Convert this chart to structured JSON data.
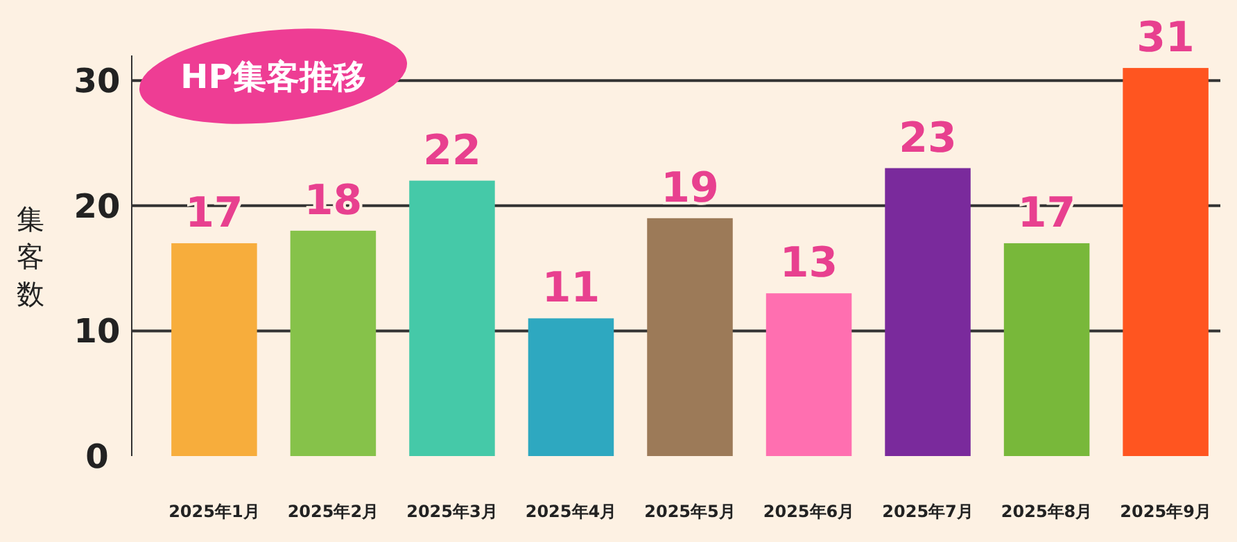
{
  "chart_data": {
    "type": "bar",
    "title": "HP集客推移",
    "ylabel": "集客数",
    "categories": [
      "2025年1月",
      "2025年2月",
      "2025年3月",
      "2025年4月",
      "2025年5月",
      "2025年6月",
      "2025年7月",
      "2025年8月",
      "2025年9月"
    ],
    "values": [
      17,
      18,
      22,
      11,
      19,
      13,
      23,
      17,
      31
    ],
    "colors": [
      "#f7ad3c",
      "#86c24a",
      "#45c9a8",
      "#2ea8c0",
      "#9c7a58",
      "#ff6fb0",
      "#7a2a9c",
      "#78b83a",
      "#ff5520"
    ],
    "ylim": [
      0,
      32
    ],
    "yticks": [
      0,
      10,
      20,
      30
    ],
    "grid": "y",
    "data_labels": true
  }
}
